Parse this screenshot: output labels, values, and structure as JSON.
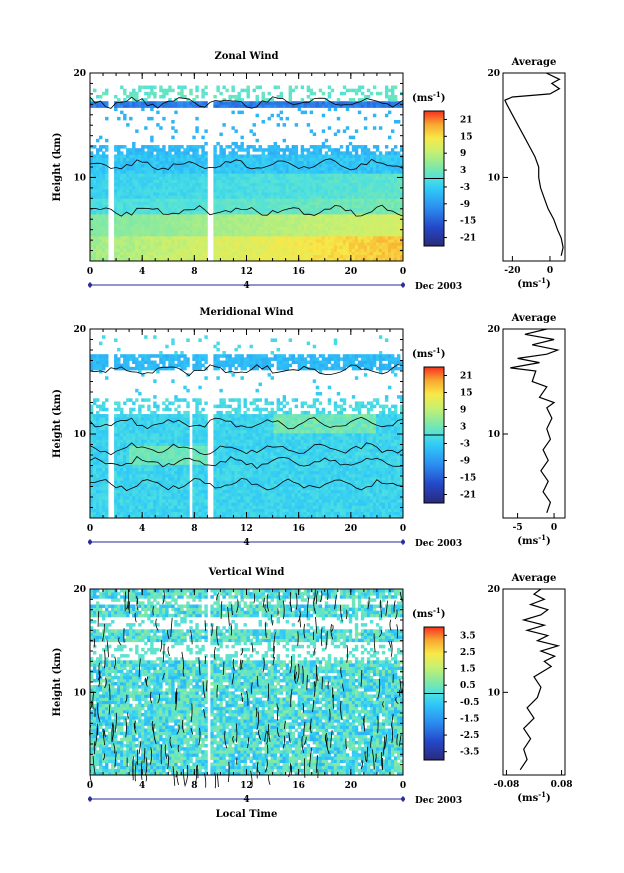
{
  "chart_data": [
    {
      "type": "heatmap",
      "title": "Zonal Wind",
      "ylabel": "Height (km)",
      "xlabel": "",
      "x_ticks": [
        "0",
        "4",
        "8",
        "12",
        "16",
        "20",
        "0"
      ],
      "y_ticks": [
        "20",
        "10"
      ],
      "ylim": [
        2,
        20
      ],
      "xlim": [
        0,
        24
      ],
      "date_label": "Dec 2003",
      "date_marker": "4",
      "colorbar": {
        "unit_label": "(ms",
        "unit_exp": "-1",
        "unit_close": ")",
        "ticks": [
          "21",
          "15",
          "9",
          "3",
          "-3",
          "-9",
          "-15",
          "-21"
        ],
        "range": [
          -24,
          24
        ]
      },
      "gaps_hours": [
        [
          1.5,
          1.8
        ],
        [
          9.1,
          9.5
        ]
      ],
      "profile": {
        "title": "Average",
        "xlabel": "(ms",
        "xlabel_exp": "-1",
        "xlabel_close": ")",
        "x_ticks": [
          "-20",
          "0"
        ],
        "y_ticks": [
          "20",
          "10"
        ],
        "xlim": [
          -25,
          8
        ],
        "points": [
          [
            6,
            2.5
          ],
          [
            7,
            3.3
          ],
          [
            6,
            4.2
          ],
          [
            4,
            5
          ],
          [
            2,
            6
          ],
          [
            -1,
            7
          ],
          [
            -3,
            8
          ],
          [
            -5,
            9
          ],
          [
            -6,
            10
          ],
          [
            -6,
            11
          ],
          [
            -8,
            12
          ],
          [
            -11,
            13
          ],
          [
            -14,
            14
          ],
          [
            -17,
            15
          ],
          [
            -20,
            16
          ],
          [
            -23,
            17
          ],
          [
            -24,
            17.4
          ],
          [
            -20,
            17.7
          ],
          [
            0,
            18
          ],
          [
            5,
            18.5
          ],
          [
            1,
            19
          ],
          [
            5,
            19.4
          ],
          [
            -2,
            20
          ]
        ]
      }
    },
    {
      "type": "heatmap",
      "title": "Meridional Wind",
      "ylabel": "Height (km)",
      "xlabel": "",
      "x_ticks": [
        "0",
        "4",
        "8",
        "12",
        "16",
        "20",
        "0"
      ],
      "y_ticks": [
        "20",
        "10"
      ],
      "ylim": [
        2,
        20
      ],
      "xlim": [
        0,
        24
      ],
      "date_label": "Dec 2003",
      "date_marker": "4",
      "colorbar": {
        "unit_label": "(ms",
        "unit_exp": "-1",
        "unit_close": ")",
        "ticks": [
          "21",
          "15",
          "9",
          "3",
          "-3",
          "-9",
          "-15",
          "-21"
        ],
        "range": [
          -24,
          24
        ]
      },
      "gaps_hours": [
        [
          1.5,
          1.8
        ],
        [
          7.6,
          7.9
        ],
        [
          8.9,
          9.5
        ]
      ],
      "profile": {
        "title": "Average",
        "xlabel": "(ms",
        "xlabel_exp": "-1",
        "xlabel_close": ")",
        "x_ticks": [
          "-5",
          "0"
        ],
        "y_ticks": [
          "20",
          "10"
        ],
        "xlim": [
          -7,
          1.5
        ],
        "points": [
          [
            -1,
            2.5
          ],
          [
            -0.5,
            3.5
          ],
          [
            -1.5,
            4.5
          ],
          [
            -0.8,
            5.5
          ],
          [
            -1.8,
            6.5
          ],
          [
            -0.8,
            7.5
          ],
          [
            -1.5,
            8.5
          ],
          [
            -0.5,
            9.5
          ],
          [
            -1,
            10.5
          ],
          [
            -0.3,
            11.5
          ],
          [
            -1,
            12.5
          ],
          [
            0,
            13
          ],
          [
            -2,
            13.5
          ],
          [
            -1,
            14.5
          ],
          [
            -3,
            15
          ],
          [
            -2.5,
            16
          ],
          [
            -6,
            16.3
          ],
          [
            -2,
            16.8
          ],
          [
            -5,
            17.2
          ],
          [
            -1,
            17.6
          ],
          [
            0.5,
            18
          ],
          [
            -3,
            18.5
          ],
          [
            0,
            19
          ],
          [
            -4,
            19.5
          ],
          [
            -1,
            20
          ]
        ]
      }
    },
    {
      "type": "heatmap",
      "title": "Vertical Wind",
      "ylabel": "Height (km)",
      "xlabel": "Local Time",
      "x_ticks": [
        "0",
        "4",
        "8",
        "12",
        "16",
        "20",
        "0"
      ],
      "y_ticks": [
        "20",
        "10"
      ],
      "ylim": [
        2,
        20
      ],
      "xlim": [
        0,
        24
      ],
      "date_label": "Dec 2003",
      "date_marker": "4",
      "colorbar": {
        "unit_label": "(ms",
        "unit_exp": "-1",
        "unit_close": ")",
        "ticks": [
          "3.5",
          "2.5",
          "1.5",
          "0.5",
          "-0.5",
          "-1.5",
          "-2.5",
          "-3.5"
        ],
        "range": [
          -4,
          4
        ]
      },
      "gaps_hours": [
        [
          9.1,
          9.3
        ]
      ],
      "profile": {
        "title": "Average",
        "xlabel": "(ms",
        "xlabel_exp": "-1",
        "xlabel_close": ")",
        "x_ticks": [
          "-0.08",
          "0.08"
        ],
        "y_ticks": [
          "20",
          "10"
        ],
        "xlim": [
          -0.09,
          0.09
        ],
        "points": [
          [
            -0.04,
            2.5
          ],
          [
            -0.02,
            3.5
          ],
          [
            -0.03,
            4.5
          ],
          [
            -0.01,
            5.5
          ],
          [
            -0.03,
            6.5
          ],
          [
            0,
            7.5
          ],
          [
            -0.02,
            8.5
          ],
          [
            0.01,
            9.5
          ],
          [
            0.02,
            10.5
          ],
          [
            0,
            11.5
          ],
          [
            0.05,
            12.5
          ],
          [
            0.03,
            13
          ],
          [
            0.06,
            13.5
          ],
          [
            0.02,
            14
          ],
          [
            0.07,
            14.5
          ],
          [
            0.01,
            15
          ],
          [
            0.04,
            15.5
          ],
          [
            -0.02,
            16
          ],
          [
            0.03,
            16.5
          ],
          [
            -0.03,
            17
          ],
          [
            0.02,
            17.5
          ],
          [
            0.04,
            18
          ],
          [
            -0.01,
            18.5
          ],
          [
            0.03,
            19
          ],
          [
            0,
            19.5
          ],
          [
            0.02,
            20
          ]
        ]
      }
    }
  ]
}
